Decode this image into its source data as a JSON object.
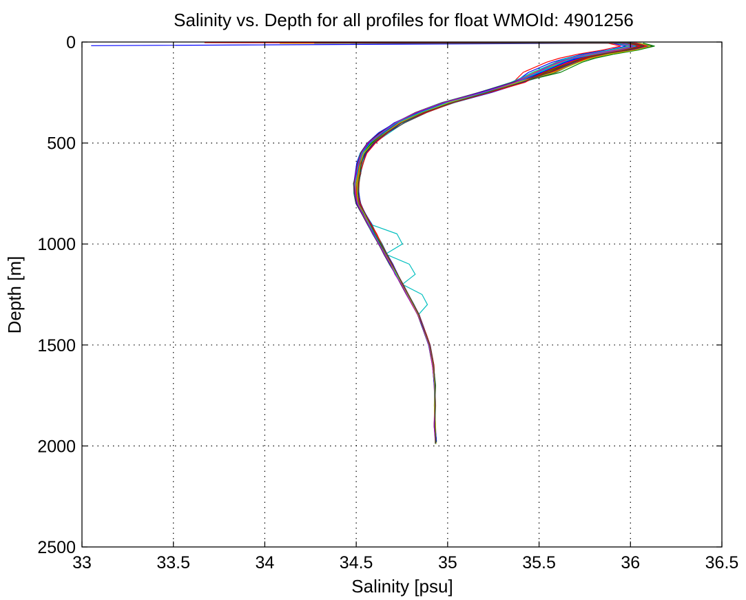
{
  "chart_data": {
    "type": "line",
    "title": "Salinity vs. Depth for all profiles for float WMOId: 4901256",
    "xlabel": "Salinity [psu]",
    "ylabel": "Depth [m]",
    "xlim": [
      33,
      36.5
    ],
    "ylim": [
      0,
      2500
    ],
    "y_reversed": true,
    "grid": true,
    "xticks": [
      "33",
      "33.5",
      "34",
      "34.5",
      "35",
      "35.5",
      "36",
      "36.5"
    ],
    "yticks": [
      "0",
      "500",
      "1000",
      "1500",
      "2000",
      "2500"
    ],
    "depths": [
      5,
      20,
      40,
      60,
      80,
      100,
      150,
      200,
      250,
      300,
      350,
      400,
      450,
      500,
      550,
      600,
      650,
      700,
      750,
      800,
      850,
      900,
      950,
      1000,
      1050,
      1100,
      1150,
      1200,
      1250,
      1300,
      1350,
      1400,
      1450,
      1500,
      1550,
      1600,
      1700,
      1800,
      1900,
      2000
    ],
    "mean_profile": [
      35.98,
      36.05,
      35.95,
      35.82,
      35.72,
      35.65,
      35.52,
      35.38,
      35.2,
      35.0,
      34.85,
      34.73,
      34.65,
      34.58,
      34.54,
      34.52,
      34.51,
      34.5,
      34.5,
      34.51,
      34.54,
      34.57,
      34.6,
      34.63,
      34.66,
      34.69,
      34.72,
      34.75,
      34.78,
      34.81,
      34.84,
      34.86,
      34.88,
      34.9,
      34.91,
      34.92,
      34.93,
      34.93,
      34.93,
      34.935
    ],
    "series_colors": [
      "#0000ff",
      "#008000",
      "#ff0000",
      "#00bfbf",
      "#bf00bf",
      "#bfbf00",
      "#404040"
    ],
    "n_profiles": 70
  }
}
